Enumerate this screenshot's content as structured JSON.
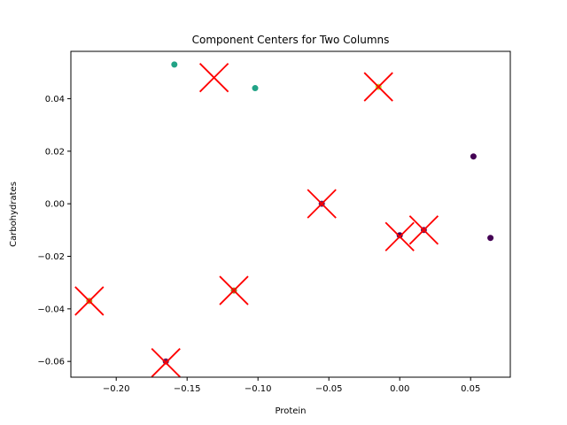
{
  "chart_data": {
    "type": "scatter",
    "title": "Component Centers for Two Columns",
    "xlabel": "Protein",
    "ylabel": "Carbohydrates",
    "xlim": [
      -0.232,
      0.078
    ],
    "ylim": [
      -0.066,
      0.058
    ],
    "xticks": [
      -0.2,
      -0.15,
      -0.1,
      -0.05,
      0.0,
      0.05
    ],
    "xtick_labels": [
      "−0.20",
      "−0.15",
      "−0.10",
      "−0.05",
      "0.00",
      "0.05"
    ],
    "yticks": [
      -0.06,
      -0.04,
      -0.02,
      0.0,
      0.02,
      0.04
    ],
    "ytick_labels": [
      "−0.06",
      "−0.04",
      "−0.02",
      "0.00",
      "0.02",
      "0.04"
    ],
    "grid": false,
    "points": [
      {
        "x": -0.159,
        "y": 0.053,
        "color": "#21a386"
      },
      {
        "x": -0.102,
        "y": 0.044,
        "color": "#21a386"
      },
      {
        "x": -0.015,
        "y": 0.0445,
        "color": "#bddf26"
      },
      {
        "x": 0.052,
        "y": 0.018,
        "color": "#440154"
      },
      {
        "x": 0.064,
        "y": -0.013,
        "color": "#440154"
      },
      {
        "x": -0.055,
        "y": 0.0,
        "color": "#6b1b5d"
      },
      {
        "x": 0.0,
        "y": -0.012,
        "color": "#440154"
      },
      {
        "x": 0.017,
        "y": -0.01,
        "color": "#6b1b5d"
      },
      {
        "x": -0.117,
        "y": -0.033,
        "color": "#8a8a2a"
      },
      {
        "x": -0.219,
        "y": -0.037,
        "color": "#b9a21e"
      },
      {
        "x": -0.165,
        "y": -0.06,
        "color": "#6b1b5d"
      }
    ],
    "centers": [
      {
        "x": -0.131,
        "y": 0.048
      },
      {
        "x": -0.015,
        "y": 0.0445
      },
      {
        "x": -0.055,
        "y": 0.0
      },
      {
        "x": 0.0,
        "y": -0.0125
      },
      {
        "x": 0.017,
        "y": -0.01
      },
      {
        "x": -0.117,
        "y": -0.033
      },
      {
        "x": -0.219,
        "y": -0.037
      },
      {
        "x": -0.165,
        "y": -0.0605
      }
    ],
    "center_color": "#ff0000"
  }
}
